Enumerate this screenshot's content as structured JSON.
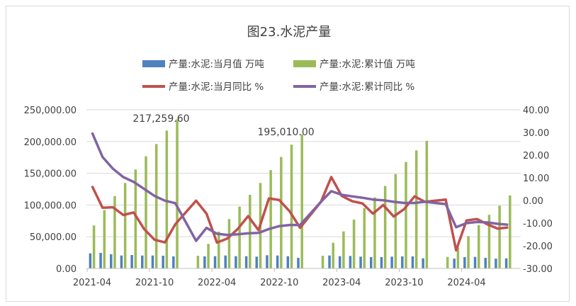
{
  "chart_data": {
    "type": "bar+line",
    "title": "图23.水泥产量",
    "categories": [
      "2021-04",
      "2021-05",
      "2021-06",
      "2021-07",
      "2021-08",
      "2021-09",
      "2021-10",
      "2021-11",
      "2021-12",
      "2022-01",
      "2022-02",
      "2022-03",
      "2022-04",
      "2022-05",
      "2022-06",
      "2022-07",
      "2022-08",
      "2022-09",
      "2022-10",
      "2022-11",
      "2022-12",
      "2023-01",
      "2023-02",
      "2023-03",
      "2023-04",
      "2023-05",
      "2023-06",
      "2023-07",
      "2023-08",
      "2023-09",
      "2023-10",
      "2023-11",
      "2023-12",
      "2024-01",
      "2024-02",
      "2024-03",
      "2024-04",
      "2024-05",
      "2024-06",
      "2024-07",
      "2024-08"
    ],
    "x_tick_labels": [
      "2021-04",
      "2021-10",
      "2022-04",
      "2022-10",
      "2023-04",
      "2023-10",
      "2024-04"
    ],
    "left_axis": {
      "ylim": [
        0,
        250000
      ],
      "ticks": [
        "0.00",
        "50,000.00",
        "100,000.00",
        "150,000.00",
        "200,000.00",
        "250,000.00"
      ]
    },
    "right_axis": {
      "ylim": [
        -30,
        40
      ],
      "ticks": [
        "-30.00",
        "-20.00",
        "-10.00",
        "0.00",
        "10.00",
        "20.00",
        "30.00",
        "40.00"
      ]
    },
    "grid": true,
    "legend_position": "top",
    "series": [
      {
        "name": "产量:水泥:当月值 万吨",
        "type": "bar",
        "axis": "left",
        "color": "#4f81bd",
        "values": [
          23800,
          24600,
          22300,
          20400,
          21200,
          20400,
          20400,
          20100,
          19000,
          null,
          null,
          19000,
          19300,
          20400,
          19300,
          19300,
          18600,
          20800,
          20400,
          19300,
          16700,
          null,
          null,
          20400,
          19300,
          19700,
          18600,
          17900,
          17900,
          18600,
          19000,
          19000,
          15900,
          null,
          null,
          15500,
          17900,
          18200,
          16700,
          15500,
          15900
        ]
      },
      {
        "name": "产量:水泥:累计值 万吨",
        "type": "bar",
        "axis": "left",
        "color": "#9bbb59",
        "values": [
          67700,
          91900,
          114000,
          134700,
          156000,
          176700,
          196000,
          217259.6,
          235000,
          null,
          20000,
          38700,
          58000,
          77800,
          97500,
          116000,
          134700,
          155000,
          175600,
          195010,
          211000,
          null,
          20000,
          40500,
          58400,
          77000,
          95000,
          112000,
          130000,
          148800,
          167700,
          186000,
          201000,
          null,
          18200,
          33000,
          51000,
          68400,
          84500,
          99000,
          115000
        ]
      },
      {
        "name": "产量:水泥:当月同比 %",
        "type": "line",
        "axis": "right",
        "color": "#c0504d",
        "values": [
          6.3,
          -3.2,
          -3.0,
          -6.4,
          -5.3,
          -12.6,
          -17.3,
          -18.5,
          -10.5,
          null,
          -0.1,
          -5.8,
          -18.6,
          -16.8,
          -12.6,
          -6.9,
          -13.1,
          0.9,
          0.2,
          -4.8,
          -12.1,
          null,
          -0.6,
          10.3,
          2.0,
          -0.3,
          -1.3,
          -5.8,
          -2.0,
          -7.1,
          -3.8,
          1.8,
          -0.6,
          null,
          0.4,
          -22.0,
          -8.8,
          -8.2,
          -10.5,
          -12.4,
          -11.9
        ]
      },
      {
        "name": "产量:水泥:累计同比 %",
        "type": "line",
        "axis": "right",
        "color": "#8064a2",
        "values": [
          29.9,
          19.2,
          14.0,
          10.3,
          8.2,
          5.1,
          2.0,
          -0.1,
          -1.2,
          null,
          -17.8,
          -12.1,
          -14.7,
          -15.2,
          -14.9,
          -14.5,
          -14.3,
          -12.6,
          -11.3,
          -10.8,
          -10.8,
          null,
          -0.6,
          4.1,
          2.5,
          1.8,
          1.2,
          0.4,
          0.1,
          -0.6,
          -1.1,
          -1.1,
          -0.6,
          null,
          -1.6,
          -11.8,
          -10.0,
          -9.5,
          -9.7,
          -10.3,
          -10.7
        ]
      }
    ],
    "annotations": [
      {
        "text": "217,259.60",
        "category": "2021-12"
      },
      {
        "text": "195,010.00",
        "category": "2022-12"
      }
    ]
  }
}
